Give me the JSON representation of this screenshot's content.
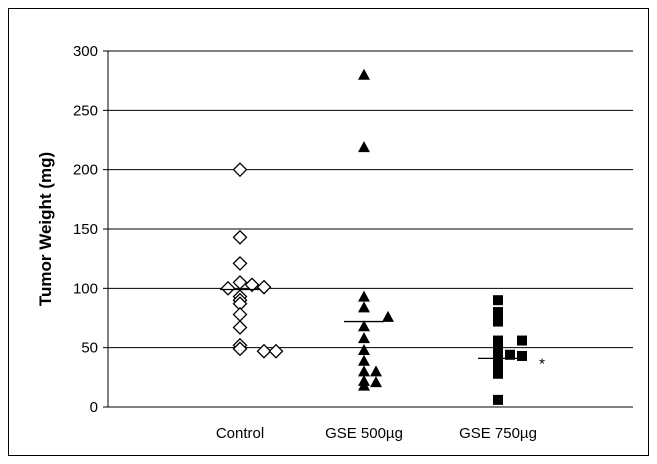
{
  "chart_data": {
    "type": "scatter",
    "title": "",
    "xlabel": "",
    "ylabel": "Tumor Weight (mg)",
    "ylim": [
      0,
      300
    ],
    "yticks": [
      0,
      50,
      100,
      150,
      200,
      250,
      300
    ],
    "grid": true,
    "categories": [
      "Control",
      "GSE 500µg",
      "GSE 750µg"
    ],
    "series": [
      {
        "category": "Control",
        "marker": "diamond-open",
        "color": "#000000",
        "mean": 99,
        "points": [
          {
            "offset": 0,
            "y": 200
          },
          {
            "offset": 0,
            "y": 143
          },
          {
            "offset": 0,
            "y": 121
          },
          {
            "offset": 0,
            "y": 105
          },
          {
            "offset": -1,
            "y": 100
          },
          {
            "offset": 0,
            "y": 93
          },
          {
            "offset": 0,
            "y": 90
          },
          {
            "offset": 0,
            "y": 87
          },
          {
            "offset": 0,
            "y": 78
          },
          {
            "offset": 0,
            "y": 67
          },
          {
            "offset": 0,
            "y": 52
          },
          {
            "offset": 0,
            "y": 49
          },
          {
            "offset": 1,
            "y": 103
          },
          {
            "offset": 2,
            "y": 101
          },
          {
            "offset": 2,
            "y": 47
          },
          {
            "offset": 3,
            "y": 47
          }
        ]
      },
      {
        "category": "GSE 500µg",
        "marker": "triangle-filled",
        "color": "#000000",
        "mean": 72,
        "points": [
          {
            "offset": 0,
            "y": 280
          },
          {
            "offset": 0,
            "y": 219
          },
          {
            "offset": 0,
            "y": 93
          },
          {
            "offset": 0,
            "y": 84
          },
          {
            "offset": 0,
            "y": 68
          },
          {
            "offset": 0,
            "y": 58
          },
          {
            "offset": 0,
            "y": 48
          },
          {
            "offset": 0,
            "y": 39
          },
          {
            "offset": 0,
            "y": 30
          },
          {
            "offset": 0,
            "y": 22
          },
          {
            "offset": 0,
            "y": 18
          },
          {
            "offset": 1,
            "y": 30
          },
          {
            "offset": 1,
            "y": 21
          },
          {
            "offset": 2,
            "y": 76
          }
        ]
      },
      {
        "category": "GSE 750µg",
        "marker": "square-filled",
        "color": "#000000",
        "mean": 41,
        "points": [
          {
            "offset": 0,
            "y": 90
          },
          {
            "offset": 0,
            "y": 80
          },
          {
            "offset": 0,
            "y": 72
          },
          {
            "offset": 0,
            "y": 56
          },
          {
            "offset": 0,
            "y": 51
          },
          {
            "offset": 0,
            "y": 47
          },
          {
            "offset": 0,
            "y": 43
          },
          {
            "offset": 0,
            "y": 38
          },
          {
            "offset": 0,
            "y": 33
          },
          {
            "offset": 0,
            "y": 28
          },
          {
            "offset": 0,
            "y": 6
          },
          {
            "offset": 1,
            "y": 44
          },
          {
            "offset": 2,
            "y": 56
          },
          {
            "offset": 2,
            "y": 43
          }
        ]
      }
    ],
    "annotations": [
      {
        "category": "GSE 750µg",
        "text": "*",
        "y": 40
      }
    ]
  }
}
